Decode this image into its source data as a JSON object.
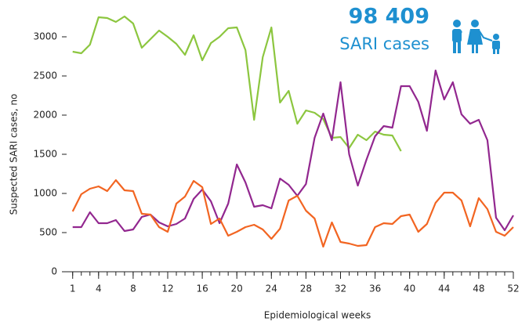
{
  "chart_data": {
    "type": "line",
    "xlabel": "Epidemiological weeks",
    "ylabel": "Suspected SARI cases, no",
    "annotations": [
      "98 409",
      "SARI cases"
    ],
    "x": [
      1,
      2,
      3,
      4,
      5,
      6,
      7,
      8,
      9,
      10,
      11,
      12,
      13,
      14,
      15,
      16,
      17,
      18,
      19,
      20,
      21,
      22,
      23,
      24,
      25,
      26,
      27,
      28,
      29,
      30,
      31,
      32,
      33,
      34,
      35,
      36,
      37,
      38,
      39,
      40,
      41,
      42,
      43,
      44,
      45,
      46,
      47,
      48,
      49,
      50,
      51,
      52
    ],
    "series": [
      {
        "color": "#8cc63f",
        "values": [
          2810,
          2790,
          2900,
          3250,
          3240,
          3190,
          3260,
          3170,
          2860,
          2970,
          3080,
          3000,
          2910,
          2770,
          3020,
          2700,
          2920,
          3000,
          3110,
          3120,
          2830,
          1940,
          2740,
          3120,
          2160,
          2310,
          1890,
          2060,
          2030,
          1950,
          1710,
          1720,
          1580,
          1750,
          1680,
          1790,
          1750,
          1740,
          1540,
          null,
          null,
          null,
          null,
          null,
          null,
          null,
          null,
          null,
          null,
          null,
          null,
          null
        ]
      },
      {
        "color": "#92278f",
        "values": [
          570,
          570,
          760,
          620,
          620,
          660,
          520,
          540,
          700,
          730,
          630,
          580,
          610,
          680,
          930,
          1050,
          900,
          620,
          870,
          1370,
          1140,
          830,
          850,
          810,
          1190,
          1110,
          970,
          1120,
          1710,
          2020,
          1680,
          2420,
          1500,
          1100,
          1430,
          1730,
          1860,
          1840,
          2370,
          2370,
          2170,
          1800,
          2570,
          2200,
          2420,
          2010,
          1890,
          1940,
          1680,
          690,
          530,
          720
        ]
      },
      {
        "color": "#f26522",
        "values": [
          770,
          990,
          1060,
          1090,
          1030,
          1170,
          1040,
          1030,
          740,
          730,
          570,
          510,
          870,
          960,
          1160,
          1080,
          610,
          680,
          460,
          510,
          570,
          600,
          540,
          420,
          550,
          910,
          970,
          780,
          680,
          320,
          630,
          380,
          360,
          330,
          340,
          570,
          620,
          610,
          710,
          730,
          510,
          610,
          880,
          1010,
          1010,
          910,
          580,
          940,
          800,
          510,
          460,
          570
        ]
      }
    ],
    "xlim": [
      0.3,
      52
    ],
    "xticks": [
      1,
      4,
      8,
      12,
      16,
      20,
      24,
      28,
      32,
      36,
      40,
      44,
      48,
      52
    ],
    "xminorticks": [
      1,
      2,
      3,
      4,
      5,
      6,
      7,
      8,
      9,
      10,
      11,
      12,
      13,
      14,
      15,
      16,
      17,
      18,
      19,
      20,
      21,
      22,
      23,
      24,
      25,
      26,
      27,
      28,
      29,
      30,
      31,
      32,
      33,
      34,
      35,
      36,
      37,
      38,
      39,
      40,
      41,
      42,
      43,
      44,
      45,
      46,
      47,
      48,
      49,
      50,
      51,
      52
    ],
    "ylim": [
      0,
      3000
    ],
    "yticks": [
      0,
      500,
      1000,
      1500,
      2000,
      2500,
      3000
    ]
  }
}
